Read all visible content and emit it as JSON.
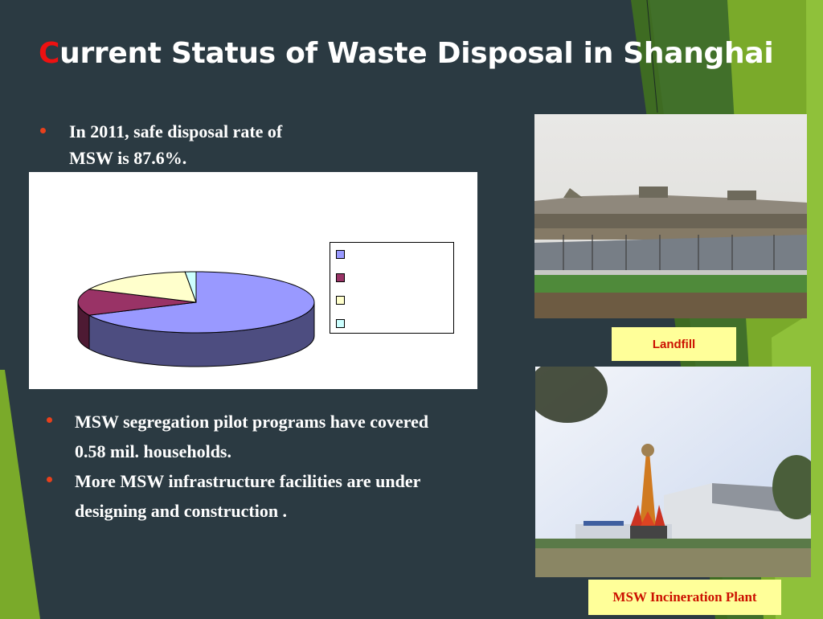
{
  "slide": {
    "title_first_letter": "C",
    "title_rest": "urrent Status of Waste Disposal in Shanghai",
    "colors": {
      "background": "#2b3a42",
      "title_accent": "#ee1111",
      "bullet": "#e8401c",
      "green_dark": "#3e6b22",
      "green_mid": "#4d7f27",
      "green_light": "#7aaa2a",
      "green_lime": "#8fc13a",
      "caption_bg": "#ffff99",
      "caption_text": "#cc1100"
    }
  },
  "bullets_top": [
    {
      "line1": "In 2011, safe disposal rate of",
      "line2": "MSW is 87.6%."
    }
  ],
  "bullets_bottom": [
    {
      "line1": "MSW segregation pilot programs have covered",
      "line2": "0.58 mil. households."
    },
    {
      "line1": "More MSW infrastructure facilities are under",
      "line2": "designing and construction ."
    }
  ],
  "photos": {
    "landfill": {
      "caption": "Landfill",
      "alt": "landfill-photo"
    },
    "plant": {
      "caption": "MSW Incineration Plant",
      "alt": "incineration-plant-photo"
    }
  },
  "chart_data": {
    "type": "pie",
    "style": "3d",
    "title": "",
    "categories": [
      "",
      "",
      "",
      ""
    ],
    "values": [
      68,
      14,
      16.5,
      1.5
    ],
    "colors": [
      "#9999ff",
      "#993366",
      "#ffffcc",
      "#ccffff"
    ],
    "side_colors": [
      "#4d4d80",
      "#4d1a33",
      "#808066",
      "#668080"
    ],
    "legend": {
      "position": "right",
      "entries": [
        "",
        "",
        "",
        ""
      ]
    },
    "start_angle_deg": 0,
    "direction": "clockwise",
    "note": "Legend labels not rendered in screenshot; values estimated from slice angles"
  }
}
